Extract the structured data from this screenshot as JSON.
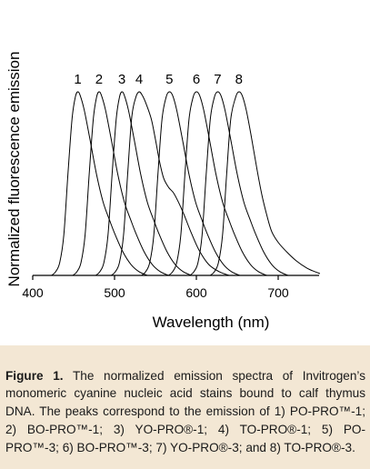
{
  "chart_data": {
    "type": "line",
    "title": "",
    "xlabel": "Wavelength (nm)",
    "ylabel": "Normalized fluorescence emission",
    "xlim": [
      400,
      750
    ],
    "ylim": [
      0,
      1
    ],
    "xticks": [
      400,
      500,
      600,
      700
    ],
    "x_tick_labels": [
      "400",
      "500",
      "600",
      "700"
    ],
    "grid": false,
    "legend": "none",
    "series_color": "#000000",
    "series": [
      {
        "label": "1",
        "peak_nm": 455,
        "points": [
          [
            423,
            0
          ],
          [
            428,
            0.02
          ],
          [
            433,
            0.07
          ],
          [
            438,
            0.22
          ],
          [
            443,
            0.55
          ],
          [
            448,
            0.85
          ],
          [
            452,
            0.97
          ],
          [
            455,
            1.0
          ],
          [
            458,
            0.98
          ],
          [
            463,
            0.9
          ],
          [
            470,
            0.74
          ],
          [
            478,
            0.55
          ],
          [
            486,
            0.4
          ],
          [
            494,
            0.3
          ],
          [
            500,
            0.23
          ],
          [
            510,
            0.13
          ],
          [
            520,
            0.06
          ],
          [
            530,
            0.02
          ],
          [
            540,
            0
          ]
        ]
      },
      {
        "label": "2",
        "peak_nm": 481,
        "points": [
          [
            449,
            0
          ],
          [
            454,
            0.02
          ],
          [
            459,
            0.07
          ],
          [
            464,
            0.22
          ],
          [
            469,
            0.55
          ],
          [
            474,
            0.85
          ],
          [
            478,
            0.97
          ],
          [
            481,
            1.0
          ],
          [
            484,
            0.98
          ],
          [
            489,
            0.9
          ],
          [
            496,
            0.74
          ],
          [
            504,
            0.55
          ],
          [
            512,
            0.4
          ],
          [
            520,
            0.3
          ],
          [
            526,
            0.23
          ],
          [
            536,
            0.13
          ],
          [
            546,
            0.06
          ],
          [
            556,
            0.02
          ],
          [
            566,
            0
          ]
        ]
      },
      {
        "label": "3",
        "peak_nm": 509,
        "points": [
          [
            477,
            0
          ],
          [
            482,
            0.02
          ],
          [
            487,
            0.07
          ],
          [
            492,
            0.22
          ],
          [
            497,
            0.55
          ],
          [
            502,
            0.85
          ],
          [
            506,
            0.97
          ],
          [
            509,
            1.0
          ],
          [
            512,
            0.98
          ],
          [
            517,
            0.9
          ],
          [
            524,
            0.74
          ],
          [
            532,
            0.55
          ],
          [
            540,
            0.4
          ],
          [
            548,
            0.3
          ],
          [
            554,
            0.23
          ],
          [
            564,
            0.13
          ],
          [
            574,
            0.06
          ],
          [
            584,
            0.02
          ],
          [
            594,
            0
          ]
        ]
      },
      {
        "label": "4",
        "peak_nm": 530,
        "points": [
          [
            496,
            0
          ],
          [
            501,
            0.02
          ],
          [
            506,
            0.07
          ],
          [
            511,
            0.22
          ],
          [
            516,
            0.55
          ],
          [
            521,
            0.86
          ],
          [
            526,
            0.97
          ],
          [
            530,
            1.0
          ],
          [
            534,
            0.98
          ],
          [
            539,
            0.93
          ],
          [
            545,
            0.85
          ],
          [
            550,
            0.74
          ],
          [
            555,
            0.62
          ],
          [
            560,
            0.53
          ],
          [
            566,
            0.48
          ],
          [
            572,
            0.45
          ],
          [
            578,
            0.4
          ],
          [
            585,
            0.33
          ],
          [
            593,
            0.24
          ],
          [
            603,
            0.14
          ],
          [
            615,
            0.06
          ],
          [
            628,
            0.02
          ],
          [
            640,
            0
          ]
        ]
      },
      {
        "label": "5",
        "peak_nm": 567,
        "points": [
          [
            533,
            0
          ],
          [
            538,
            0.02
          ],
          [
            543,
            0.07
          ],
          [
            548,
            0.22
          ],
          [
            553,
            0.55
          ],
          [
            558,
            0.85
          ],
          [
            563,
            0.97
          ],
          [
            567,
            1.0
          ],
          [
            571,
            0.98
          ],
          [
            576,
            0.9
          ],
          [
            583,
            0.74
          ],
          [
            591,
            0.55
          ],
          [
            599,
            0.4
          ],
          [
            607,
            0.3
          ],
          [
            613,
            0.23
          ],
          [
            623,
            0.13
          ],
          [
            633,
            0.06
          ],
          [
            643,
            0.02
          ],
          [
            653,
            0
          ]
        ]
      },
      {
        "label": "6",
        "peak_nm": 600,
        "points": [
          [
            566,
            0
          ],
          [
            571,
            0.02
          ],
          [
            576,
            0.07
          ],
          [
            581,
            0.22
          ],
          [
            586,
            0.55
          ],
          [
            591,
            0.85
          ],
          [
            596,
            0.97
          ],
          [
            600,
            1.0
          ],
          [
            604,
            0.98
          ],
          [
            609,
            0.9
          ],
          [
            616,
            0.74
          ],
          [
            624,
            0.55
          ],
          [
            632,
            0.4
          ],
          [
            640,
            0.3
          ],
          [
            646,
            0.23
          ],
          [
            656,
            0.13
          ],
          [
            666,
            0.06
          ],
          [
            676,
            0.02
          ],
          [
            686,
            0
          ]
        ]
      },
      {
        "label": "7",
        "peak_nm": 626,
        "points": [
          [
            592,
            0
          ],
          [
            597,
            0.02
          ],
          [
            602,
            0.07
          ],
          [
            607,
            0.22
          ],
          [
            612,
            0.55
          ],
          [
            617,
            0.85
          ],
          [
            622,
            0.97
          ],
          [
            626,
            1.0
          ],
          [
            630,
            0.98
          ],
          [
            635,
            0.9
          ],
          [
            642,
            0.74
          ],
          [
            650,
            0.55
          ],
          [
            658,
            0.4
          ],
          [
            666,
            0.3
          ],
          [
            672,
            0.23
          ],
          [
            682,
            0.13
          ],
          [
            692,
            0.06
          ],
          [
            702,
            0.02
          ],
          [
            712,
            0
          ]
        ]
      },
      {
        "label": "8",
        "peak_nm": 652,
        "points": [
          [
            617,
            0
          ],
          [
            622,
            0.02
          ],
          [
            627,
            0.07
          ],
          [
            632,
            0.22
          ],
          [
            637,
            0.55
          ],
          [
            642,
            0.85
          ],
          [
            648,
            0.97
          ],
          [
            652,
            1.0
          ],
          [
            656,
            0.98
          ],
          [
            661,
            0.9
          ],
          [
            667,
            0.76
          ],
          [
            674,
            0.58
          ],
          [
            680,
            0.44
          ],
          [
            686,
            0.33
          ],
          [
            692,
            0.24
          ],
          [
            700,
            0.18
          ],
          [
            710,
            0.13
          ],
          [
            722,
            0.08
          ],
          [
            735,
            0.04
          ],
          [
            745,
            0.02
          ],
          [
            751,
            0.01
          ]
        ]
      }
    ]
  },
  "caption": {
    "figure_label": "Figure 1.",
    "text": " The normalized emission spectra of Invitrogen’s monomeric cyanine nucleic acid stains bound to calf thymus DNA. The peaks correspond to the emission of 1) PO-PRO™-1; 2) BO-PRO™-1; 3) YO-PRO®-1; 4) TO-PRO®-1; 5) PO-PRO™-3; 6) BO-PRO™-3; 7) YO-PRO®-3; and 8) TO-PRO®-3."
  },
  "colors": {
    "caption_background": "#f3e7d4",
    "axis": "#000000"
  }
}
